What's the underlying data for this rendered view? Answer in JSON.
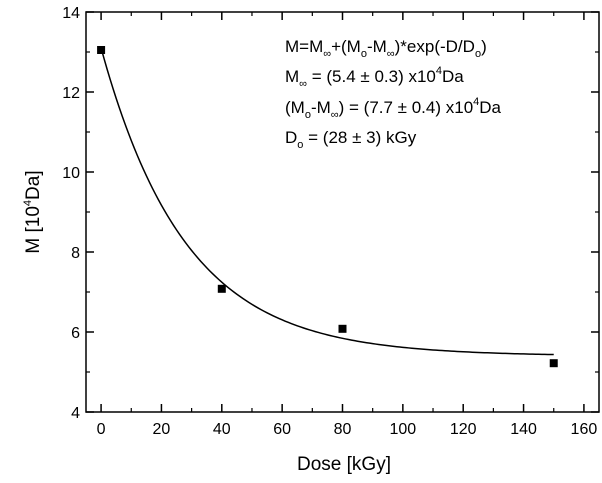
{
  "chart_data": {
    "type": "scatter",
    "x": [
      0,
      40,
      80,
      150
    ],
    "y": [
      13.05,
      7.08,
      6.08,
      5.22
    ],
    "fit": {
      "model": "exponential decay",
      "M_inf": 5.4,
      "M0_minus_Minf": 7.7,
      "D0": 28,
      "x_range": [
        0,
        150
      ]
    },
    "xlim": [
      -5,
      165
    ],
    "ylim": [
      4,
      14
    ],
    "xticks": [
      0,
      20,
      40,
      60,
      80,
      100,
      120,
      140,
      160
    ],
    "yticks": [
      4,
      6,
      8,
      10,
      12,
      14
    ],
    "xlabel": "Dose [kGy]",
    "ylabel_parts": {
      "main": "M [10",
      "sup": "4",
      "end": "Da]"
    },
    "annotation": {
      "line1": {
        "a": "M=M",
        "b": "∞",
        "c": "+(M",
        "d": "o",
        "e": "-M",
        "f": "∞",
        "g": ")*exp(-D/D",
        "h": "o",
        "i": ")"
      },
      "line2": {
        "a": "M",
        "b": "∞",
        "c": " = (5.4 ± 0.3) x10",
        "d": "4",
        "e": "Da"
      },
      "line3": {
        "a": "(M",
        "b": "o",
        "c": "-M",
        "d": "∞",
        "e": ") = (7.7 ± 0.4) x10",
        "f": "4",
        "g": "Da"
      },
      "line4": {
        "a": "D",
        "b": "o",
        "c": " = (28 ± 3) kGy"
      }
    },
    "grid": false,
    "marker": "square",
    "color": "#000000"
  }
}
